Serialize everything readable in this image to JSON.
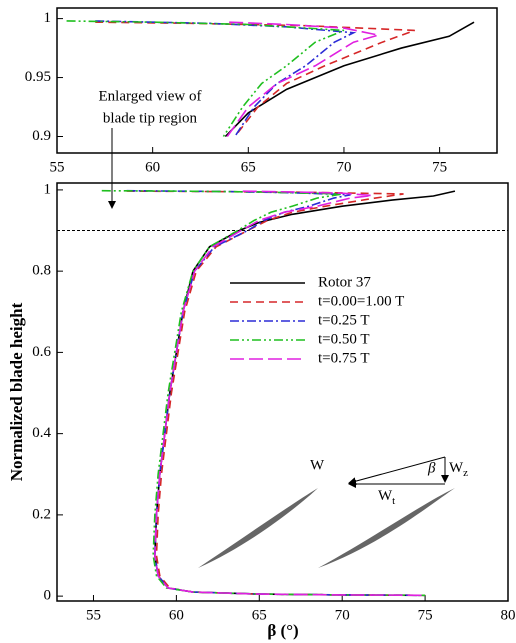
{
  "chart_data": [
    {
      "type": "line",
      "xlim": [
        55,
        78
      ],
      "ylim": [
        0.886,
        1.009
      ],
      "xticks": [
        55,
        60,
        65,
        70,
        75
      ],
      "yticks": [
        0.9,
        0.95,
        1
      ],
      "annotation": [
        "Enlarged view of",
        "blade tip region"
      ],
      "series": [
        {
          "name": "Rotor 37",
          "color": "#000000",
          "dash": "",
          "x": [
            76.8,
            75.5,
            73,
            70,
            67,
            65,
            63.8
          ],
          "y": [
            0.997,
            0.985,
            0.975,
            0.96,
            0.94,
            0.92,
            0.9
          ]
        },
        {
          "name": "t=0.00=1.00 T",
          "color": "#d62728",
          "dash": "8,5",
          "x": [
            57,
            62,
            68,
            73.7,
            72,
            69,
            67,
            65.5,
            64.3
          ],
          "y": [
            0.997,
            0.996,
            0.994,
            0.99,
            0.98,
            0.96,
            0.945,
            0.925,
            0.9
          ]
        },
        {
          "name": "t=0.25 T",
          "color": "#2b2bd6",
          "dash": "9,3,2,3",
          "x": [
            57,
            63,
            67,
            70.5,
            69.5,
            68,
            66.5,
            65.3,
            64.3
          ],
          "y": [
            0.998,
            0.996,
            0.993,
            0.988,
            0.98,
            0.96,
            0.945,
            0.925,
            0.9
          ]
        },
        {
          "name": "t=0.50 T",
          "color": "#1fbf1f",
          "dash": "9,3,2,3,2,3",
          "x": [
            55.5,
            60,
            65,
            70,
            68.5,
            67,
            65.7,
            64.7,
            63.7
          ],
          "y": [
            0.998,
            0.997,
            0.995,
            0.99,
            0.98,
            0.96,
            0.945,
            0.925,
            0.9
          ]
        },
        {
          "name": "t=0.75 T",
          "color": "#e020e0",
          "dash": "14,5",
          "x": [
            64,
            67,
            70,
            71.8,
            70.5,
            68.5,
            66.5,
            65,
            63.9
          ],
          "y": [
            0.997,
            0.995,
            0.992,
            0.986,
            0.98,
            0.96,
            0.945,
            0.925,
            0.9
          ]
        }
      ]
    },
    {
      "type": "line",
      "xlabel": "β (°)",
      "ylabel": "Normalized blade height",
      "xlim": [
        52.8,
        80
      ],
      "ylim": [
        -0.012,
        1.017
      ],
      "xticks": [
        55,
        60,
        65,
        70,
        75,
        80
      ],
      "yticks": [
        0,
        0.2,
        0.4,
        0.6,
        0.8,
        1
      ],
      "hline": 0.9,
      "legend": true,
      "inset": {
        "W": "W",
        "beta": "β",
        "Wz": [
          "W",
          "z"
        ],
        "Wt": [
          "W",
          "t"
        ]
      },
      "series": [
        {
          "name": "Rotor 37",
          "color": "#000000",
          "dash": "",
          "x": [
            76.8,
            75.5,
            73,
            70,
            67,
            65,
            63.8,
            62,
            61,
            60.4,
            60,
            59.6,
            59.3,
            59,
            58.8,
            58.7,
            58.9,
            59.5,
            61,
            65,
            70,
            74.5
          ],
          "y": [
            0.997,
            0.985,
            0.975,
            0.96,
            0.94,
            0.92,
            0.9,
            0.86,
            0.8,
            0.7,
            0.6,
            0.5,
            0.4,
            0.3,
            0.2,
            0.1,
            0.05,
            0.02,
            0.01,
            0.005,
            0.003,
            0.002
          ]
        },
        {
          "name": "t=0.00=1.00 T",
          "color": "#d62728",
          "dash": "8,5",
          "x": [
            57,
            62,
            68,
            73.7,
            72,
            69,
            67,
            65.5,
            64.3,
            62.4,
            61.2,
            60.5,
            60.1,
            59.7,
            59.4,
            59.1,
            58.9,
            58.8,
            59,
            59.6,
            61,
            65,
            70,
            75
          ],
          "y": [
            0.997,
            0.996,
            0.994,
            0.99,
            0.98,
            0.96,
            0.945,
            0.925,
            0.9,
            0.86,
            0.8,
            0.7,
            0.6,
            0.5,
            0.4,
            0.3,
            0.2,
            0.1,
            0.05,
            0.02,
            0.01,
            0.005,
            0.003,
            0.002
          ]
        },
        {
          "name": "t=0.25 T",
          "color": "#2b2bd6",
          "dash": "9,3,2,3",
          "x": [
            57,
            63,
            67,
            70.5,
            69.5,
            68,
            66.5,
            65.3,
            64.3,
            62.3,
            61.1,
            60.4,
            60,
            59.6,
            59.3,
            59,
            58.8,
            58.7,
            58.9,
            59.5,
            61,
            65,
            70,
            75
          ],
          "y": [
            0.998,
            0.996,
            0.993,
            0.988,
            0.98,
            0.96,
            0.945,
            0.925,
            0.9,
            0.86,
            0.8,
            0.7,
            0.6,
            0.5,
            0.4,
            0.3,
            0.2,
            0.1,
            0.05,
            0.02,
            0.01,
            0.005,
            0.003,
            0.002
          ]
        },
        {
          "name": "t=0.50 T",
          "color": "#1fbf1f",
          "dash": "9,3,2,3,2,3",
          "x": [
            55.5,
            60,
            65,
            70,
            68.5,
            67,
            65.7,
            64.7,
            63.7,
            62,
            61,
            60.3,
            59.9,
            59.5,
            59.2,
            58.9,
            58.7,
            58.6,
            58.8,
            59.4,
            61,
            65,
            70,
            75
          ],
          "y": [
            0.998,
            0.997,
            0.995,
            0.99,
            0.98,
            0.96,
            0.945,
            0.925,
            0.9,
            0.86,
            0.8,
            0.7,
            0.6,
            0.5,
            0.4,
            0.3,
            0.2,
            0.1,
            0.05,
            0.02,
            0.01,
            0.005,
            0.003,
            0.002
          ]
        },
        {
          "name": "t=0.75 T",
          "color": "#e020e0",
          "dash": "14,5",
          "x": [
            64,
            67,
            70,
            71.8,
            70.5,
            68.5,
            66.5,
            65,
            63.9,
            62.2,
            61.1,
            60.4,
            60,
            59.6,
            59.3,
            59,
            58.8,
            58.7,
            58.9,
            59.5,
            61,
            65,
            70,
            75
          ],
          "y": [
            0.997,
            0.995,
            0.992,
            0.986,
            0.98,
            0.96,
            0.945,
            0.925,
            0.9,
            0.86,
            0.8,
            0.7,
            0.6,
            0.5,
            0.4,
            0.3,
            0.2,
            0.1,
            0.05,
            0.02,
            0.01,
            0.005,
            0.003,
            0.002
          ]
        }
      ]
    }
  ]
}
